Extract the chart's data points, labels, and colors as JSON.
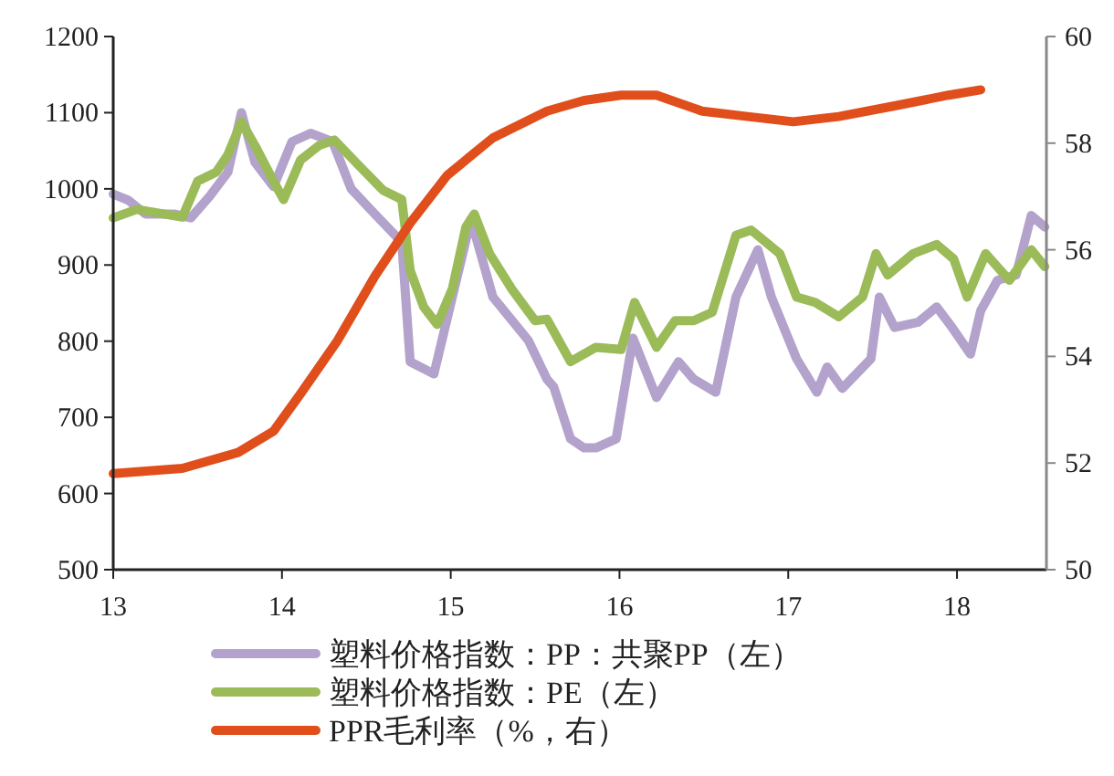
{
  "chart_data": {
    "type": "line",
    "legend": "bottom",
    "xlim": [
      13,
      18.53
    ],
    "xticks": [
      13,
      14,
      15,
      16,
      17,
      18
    ],
    "ylim": [
      500,
      1200
    ],
    "yticks": [
      500,
      600,
      700,
      800,
      900,
      1000,
      1100,
      1200
    ],
    "y2lim": [
      50,
      60
    ],
    "y2ticks": [
      50,
      52,
      54,
      56,
      58,
      60
    ],
    "grid": false,
    "marker": "none",
    "line_style": "solid",
    "series": [
      {
        "name": "塑料价格指数：PP：共聚PP（左）",
        "color": "#b3a2cc",
        "x": [
          13.0,
          13.09,
          13.19,
          13.36,
          13.46,
          13.57,
          13.68,
          13.76,
          13.84,
          13.95,
          14.06,
          14.17,
          14.3,
          14.41,
          14.55,
          14.71,
          14.76,
          14.9,
          15.12,
          15.25,
          15.46,
          15.57,
          15.61,
          15.71,
          15.79,
          15.86,
          15.98,
          16.08,
          16.22,
          16.35,
          16.44,
          16.57,
          16.69,
          16.82,
          16.9,
          17.05,
          17.17,
          17.23,
          17.32,
          17.49,
          17.54,
          17.63,
          17.77,
          17.88,
          17.97,
          18.08,
          18.14,
          18.24,
          18.35,
          18.44,
          18.52
        ],
        "values": [
          993,
          985,
          967,
          967,
          962,
          990,
          1022,
          1100,
          1035,
          1003,
          1062,
          1073,
          1062,
          1000,
          967,
          930,
          773,
          757,
          960,
          858,
          801,
          750,
          740,
          672,
          660,
          660,
          672,
          804,
          726,
          773,
          750,
          733,
          858,
          920,
          858,
          777,
          733,
          766,
          738,
          777,
          858,
          818,
          825,
          845,
          818,
          783,
          840,
          880,
          887,
          965,
          950
        ]
      },
      {
        "name": "塑料价格指数：PE（左）",
        "color": "#9bbb59",
        "x": [
          13.0,
          13.14,
          13.3,
          13.41,
          13.5,
          13.61,
          13.68,
          13.76,
          13.84,
          13.95,
          14.01,
          14.11,
          14.22,
          14.31,
          14.44,
          14.6,
          14.71,
          14.76,
          14.84,
          14.92,
          15.01,
          15.09,
          15.14,
          15.23,
          15.36,
          15.5,
          15.57,
          15.71,
          15.86,
          16.01,
          16.09,
          16.22,
          16.33,
          16.44,
          16.55,
          16.69,
          16.78,
          16.95,
          17.05,
          17.16,
          17.3,
          17.44,
          17.52,
          17.59,
          17.74,
          17.88,
          17.98,
          18.06,
          18.17,
          18.31,
          18.44,
          18.52
        ],
        "values": [
          962,
          973,
          967,
          963,
          1010,
          1022,
          1045,
          1088,
          1057,
          1010,
          986,
          1038,
          1057,
          1064,
          1034,
          998,
          986,
          893,
          845,
          822,
          869,
          950,
          967,
          915,
          869,
          827,
          829,
          773,
          792,
          789,
          851,
          792,
          827,
          827,
          838,
          939,
          946,
          915,
          858,
          851,
          832,
          858,
          915,
          887,
          915,
          927,
          908,
          858,
          915,
          880,
          920,
          898
        ]
      },
      {
        "name": "PPR毛利率（%，右）",
        "color": "#e04e1c",
        "axis": "y2",
        "x": [
          13.0,
          13.41,
          13.74,
          13.95,
          14.11,
          14.33,
          14.55,
          14.76,
          14.98,
          15.25,
          15.57,
          15.79,
          16.01,
          16.22,
          16.49,
          16.76,
          17.03,
          17.3,
          17.63,
          17.95,
          18.14
        ],
        "values": [
          51.8,
          51.9,
          52.2,
          52.6,
          53.3,
          54.3,
          55.5,
          56.5,
          57.4,
          58.1,
          58.6,
          58.8,
          58.9,
          58.9,
          58.6,
          58.5,
          58.4,
          58.5,
          58.7,
          58.9,
          59.0
        ]
      }
    ]
  }
}
